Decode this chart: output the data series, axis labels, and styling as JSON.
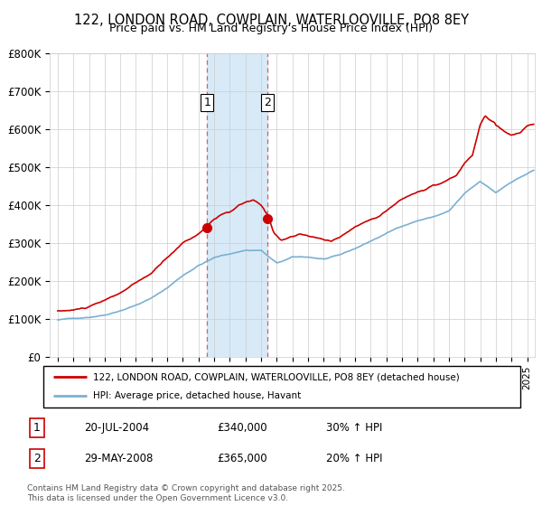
{
  "title": "122, LONDON ROAD, COWPLAIN, WATERLOOVILLE, PO8 8EY",
  "subtitle": "Price paid vs. HM Land Registry's House Price Index (HPI)",
  "legend_line1": "122, LONDON ROAD, COWPLAIN, WATERLOOVILLE, PO8 8EY (detached house)",
  "legend_line2": "HPI: Average price, detached house, Havant",
  "footnote": "Contains HM Land Registry data © Crown copyright and database right 2025.\nThis data is licensed under the Open Government Licence v3.0.",
  "sale1_label": "1",
  "sale1_date": "20-JUL-2004",
  "sale1_price": "£340,000",
  "sale1_hpi": "30% ↑ HPI",
  "sale2_label": "2",
  "sale2_date": "29-MAY-2008",
  "sale2_price": "£365,000",
  "sale2_hpi": "20% ↑ HPI",
  "sale1_year": 2004.54,
  "sale2_year": 2008.41,
  "sale1_price_val": 340000,
  "sale2_price_val": 365000,
  "ylim": [
    0,
    800000
  ],
  "xlim_start": 1994.5,
  "xlim_end": 2025.5,
  "red_color": "#cc0000",
  "blue_color": "#7ab0d4",
  "shading_color": "#d8eaf7",
  "grid_color": "#cccccc",
  "background_color": "#ffffff",
  "yticks": [
    0,
    100000,
    200000,
    300000,
    400000,
    500000,
    600000,
    700000,
    800000
  ],
  "ylabels": [
    "£0",
    "£100K",
    "£200K",
    "£300K",
    "£400K",
    "£500K",
    "£600K",
    "£700K",
    "£800K"
  ]
}
